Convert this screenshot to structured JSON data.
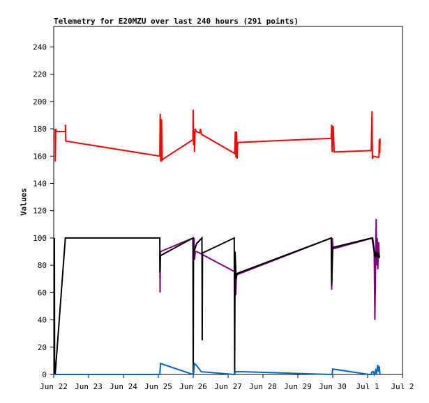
{
  "chart_data": {
    "type": "line",
    "title": "Telemetry for E20MZU over last 240 hours (291 points)",
    "ylabel": "Values",
    "xlabel": "",
    "ylim": [
      0,
      255
    ],
    "xlim": [
      0,
      240
    ],
    "y_ticks": [
      0,
      20,
      40,
      60,
      80,
      100,
      120,
      140,
      160,
      180,
      200,
      220,
      240
    ],
    "x_ticks": [
      {
        "label": "Jun 22",
        "x": 0
      },
      {
        "label": "Jun 23",
        "x": 24
      },
      {
        "label": "Jun 24",
        "x": 48
      },
      {
        "label": "Jun 25",
        "x": 72
      },
      {
        "label": "Jun 26",
        "x": 96
      },
      {
        "label": "Jun 27",
        "x": 120
      },
      {
        "label": "Jun 28",
        "x": 144
      },
      {
        "label": "Jun 29",
        "x": 168
      },
      {
        "label": "Jun 30",
        "x": 192
      },
      {
        "label": "Jul 1",
        "x": 216
      },
      {
        "label": "Jul 2",
        "x": 240
      }
    ],
    "grid": false,
    "series": [
      {
        "color": "#ff0000",
        "points": [
          [
            1.0,
            180
          ],
          [
            1.1,
            156
          ],
          [
            1.4,
            180
          ],
          [
            1.9,
            178
          ],
          [
            8.0,
            178
          ],
          [
            8.1,
            183
          ],
          [
            8.3,
            171
          ],
          [
            73.0,
            160
          ],
          [
            73.3,
            191
          ],
          [
            73.6,
            156
          ],
          [
            74.2,
            187
          ],
          [
            74.6,
            157
          ],
          [
            75.5,
            158
          ],
          [
            95.8,
            172
          ],
          [
            96.0,
            194
          ],
          [
            96.3,
            168
          ],
          [
            96.6,
            178
          ],
          [
            96.9,
            163
          ],
          [
            97.3,
            180
          ],
          [
            98.2,
            178
          ],
          [
            100.5,
            177
          ],
          [
            101.0,
            180
          ],
          [
            101.6,
            176
          ],
          [
            124.5,
            162
          ],
          [
            125.0,
            178
          ],
          [
            125.4,
            159
          ],
          [
            125.8,
            178
          ],
          [
            126.2,
            158
          ],
          [
            126.6,
            170
          ],
          [
            191.0,
            173
          ],
          [
            191.3,
            183
          ],
          [
            191.6,
            163
          ],
          [
            192.3,
            182
          ],
          [
            193.0,
            163
          ],
          [
            218.5,
            164
          ],
          [
            219.0,
            193
          ],
          [
            219.3,
            158
          ],
          [
            220.0,
            160
          ],
          [
            223.5,
            159
          ],
          [
            223.8,
            160
          ],
          [
            224.0,
            172
          ],
          [
            224.3,
            162
          ],
          [
            224.6,
            173
          ]
        ]
      },
      {
        "color": "#800080",
        "points": [
          [
            73.0,
            90
          ],
          [
            73.2,
            60
          ],
          [
            73.4,
            90
          ],
          [
            96.0,
            100
          ],
          [
            96.2,
            85
          ],
          [
            96.6,
            100
          ],
          [
            96.9,
            84
          ],
          [
            97.5,
            90
          ],
          [
            98.5,
            90
          ],
          [
            125.0,
            75
          ],
          [
            125.3,
            58
          ],
          [
            125.7,
            73
          ],
          [
            191.0,
            100
          ],
          [
            191.3,
            62
          ],
          [
            191.7,
            100
          ],
          [
            192.2,
            92
          ],
          [
            219.5,
            100
          ],
          [
            220.5,
            92
          ],
          [
            221.0,
            40
          ],
          [
            221.4,
            75
          ],
          [
            221.9,
            114
          ],
          [
            222.2,
            80
          ],
          [
            222.6,
            100
          ],
          [
            223.0,
            77
          ],
          [
            223.6,
            97
          ],
          [
            224.0,
            85
          ]
        ]
      },
      {
        "color": "#000000",
        "points": [
          [
            0.5,
            100
          ],
          [
            0.6,
            0
          ],
          [
            1.0,
            0
          ],
          [
            8.0,
            100
          ],
          [
            73.0,
            100
          ],
          [
            73.1,
            75
          ],
          [
            73.4,
            87
          ],
          [
            95.8,
            100
          ],
          [
            96.0,
            0
          ],
          [
            96.2,
            89
          ],
          [
            98.4,
            96
          ],
          [
            102.0,
            100
          ],
          [
            102.2,
            25
          ],
          [
            102.4,
            89
          ],
          [
            124.2,
            100
          ],
          [
            124.5,
            0
          ],
          [
            124.8,
            90
          ],
          [
            125.5,
            70
          ],
          [
            126.2,
            74
          ],
          [
            191.0,
            100
          ],
          [
            191.3,
            65
          ],
          [
            192.0,
            93
          ],
          [
            219.0,
            100
          ],
          [
            220.0,
            94
          ],
          [
            221.0,
            86
          ],
          [
            221.5,
            90
          ],
          [
            222.0,
            86
          ],
          [
            222.7,
            89
          ],
          [
            223.2,
            86
          ],
          [
            223.7,
            88
          ],
          [
            224.2,
            86
          ]
        ]
      },
      {
        "color": "#0066cc",
        "points": [
          [
            0,
            0
          ],
          [
            73.0,
            0
          ],
          [
            73.5,
            8
          ],
          [
            95.8,
            0
          ],
          [
            96.2,
            0
          ],
          [
            96.8,
            8
          ],
          [
            98.0,
            7
          ],
          [
            101.5,
            2
          ],
          [
            124.0,
            0
          ],
          [
            124.5,
            0
          ],
          [
            125.0,
            2
          ],
          [
            131.0,
            2
          ],
          [
            190.0,
            0
          ],
          [
            191.5,
            0
          ],
          [
            192.0,
            4
          ],
          [
            217.0,
            0
          ],
          [
            218.5,
            0
          ],
          [
            219.0,
            2
          ],
          [
            220.0,
            2
          ],
          [
            220.5,
            0
          ],
          [
            221.5,
            3
          ],
          [
            222.0,
            0
          ],
          [
            223.0,
            7
          ],
          [
            223.5,
            2
          ],
          [
            224.0,
            6
          ],
          [
            224.5,
            0
          ]
        ]
      }
    ]
  }
}
